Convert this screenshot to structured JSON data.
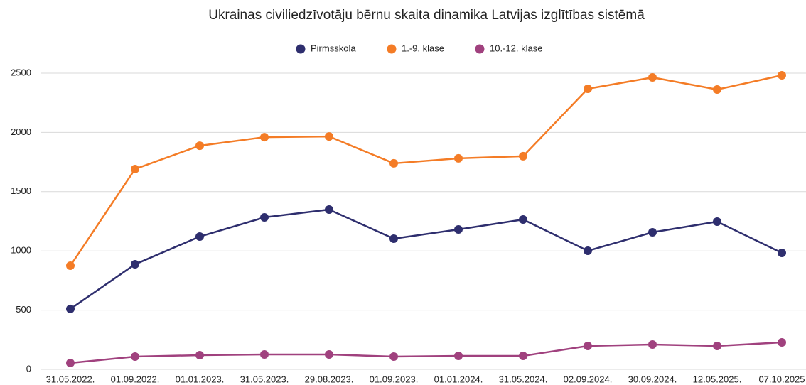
{
  "chart_data": {
    "type": "line",
    "title": "Ukrainas civiliedzīvotāju bērnu skaita dinamika Latvijas izglītības sistēmā",
    "categories": [
      "31.05.2022.",
      "01.09.2022.",
      "01.01.2023.",
      "31.05.2023.",
      "29.08.2023.",
      "01.09.2023.",
      "01.01.2024.",
      "31.05.2024.",
      "02.09.2024.",
      "30.09.2024.",
      "12.05.2025.",
      "07.10.2025"
    ],
    "series": [
      {
        "name": "Pirmsskola",
        "color": "#2e2e6e",
        "values": [
          510,
          887,
          1121,
          1283,
          1349,
          1103,
          1181,
          1265,
          1001,
          1157,
          1247,
          983
        ]
      },
      {
        "name": "1.-9. klase",
        "color": "#f47c26",
        "values": [
          875,
          1691,
          1888,
          1960,
          1966,
          1739,
          1781,
          1799,
          2368,
          2464,
          2362,
          2482
        ]
      },
      {
        "name": "10.-12. klase",
        "color": "#a0417e",
        "values": [
          54,
          108,
          120,
          126,
          126,
          108,
          114,
          114,
          198,
          210,
          198,
          228
        ]
      }
    ],
    "ylim": [
      0,
      2500
    ],
    "yticks": [
      0,
      500,
      1000,
      1500,
      2000,
      2500
    ],
    "grid": true,
    "legend": "top"
  }
}
